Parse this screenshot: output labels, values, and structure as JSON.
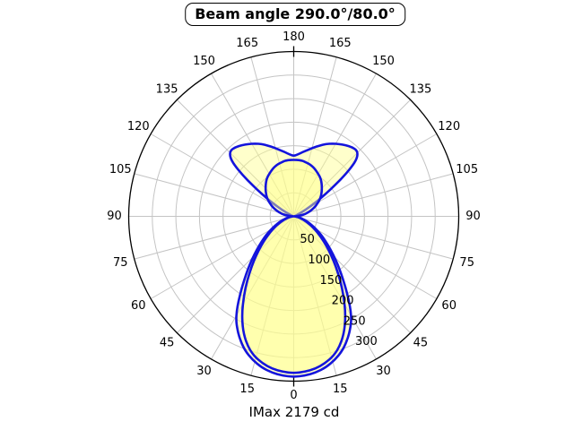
{
  "title": "Beam angle 290.0°/80.0°",
  "footer": "IMax 2179 cd",
  "chart_data": {
    "type": "polar",
    "subtype": "photometric-intensity-distribution",
    "units": "cd",
    "imax_cd": 2179,
    "beam_angles_deg": [
      290.0,
      80.0
    ],
    "angle_axis": {
      "zero_position": "bottom",
      "min_deg": 0,
      "max_deg": 180,
      "step_deg": 15,
      "labels_both_sides": true,
      "tick_labels": [
        0,
        15,
        30,
        45,
        60,
        75,
        90,
        105,
        120,
        135,
        150,
        165,
        180
      ]
    },
    "radial_axis": {
      "min": 0,
      "max": 350,
      "grid_step": 50,
      "ring_labels": [
        50,
        100,
        150,
        200,
        250,
        300
      ],
      "label_direction_deg": 30
    },
    "grid": {
      "spoke_step_deg": 15,
      "rings": 7
    },
    "colors": {
      "curve": "#1414dc",
      "fill": "rgba(255,255,140,0.45)",
      "grid": "#c4c4c4",
      "outer_ring": "#000000",
      "text": "#000000",
      "background": "#ffffff"
    },
    "series": [
      {
        "name": "plane-wide-290deg",
        "symmetry": "mirrored-left-right",
        "points_deg_cd": [
          [
            0,
            341
          ],
          [
            4,
            339
          ],
          [
            8,
            335
          ],
          [
            12,
            328
          ],
          [
            16,
            317
          ],
          [
            20,
            303
          ],
          [
            24,
            283
          ],
          [
            27,
            265
          ],
          [
            29,
            252
          ],
          [
            31,
            235
          ],
          [
            33,
            215
          ],
          [
            35,
            196
          ],
          [
            38,
            170
          ],
          [
            41,
            148
          ],
          [
            44,
            128
          ],
          [
            48,
            105
          ],
          [
            52,
            86
          ],
          [
            56,
            70
          ],
          [
            60,
            55
          ],
          [
            64,
            43
          ],
          [
            68,
            33
          ],
          [
            72,
            24
          ],
          [
            76,
            16
          ],
          [
            80,
            10
          ],
          [
            84,
            5
          ],
          [
            88,
            2
          ],
          [
            92,
            1
          ],
          [
            96,
            1
          ],
          [
            100,
            1.5
          ],
          [
            104,
            2
          ],
          [
            108,
            3
          ],
          [
            111,
            5
          ],
          [
            114,
            9
          ],
          [
            117,
            17
          ],
          [
            119,
            28
          ],
          [
            121,
            42
          ],
          [
            123,
            60
          ],
          [
            125,
            82
          ],
          [
            127,
            108
          ],
          [
            129,
            140
          ],
          [
            131,
            168
          ],
          [
            133,
            185
          ],
          [
            136,
            194
          ],
          [
            140,
            192
          ],
          [
            144,
            187
          ],
          [
            148,
            181
          ],
          [
            152,
            175
          ],
          [
            156,
            168
          ],
          [
            160,
            160
          ],
          [
            164,
            152
          ],
          [
            168,
            144
          ],
          [
            172,
            138
          ],
          [
            176,
            132
          ],
          [
            180,
            128
          ]
        ]
      },
      {
        "name": "plane-narrow-80deg",
        "symmetry": "mirrored-left-right",
        "points_deg_cd": [
          [
            0,
            333
          ],
          [
            4,
            331
          ],
          [
            8,
            327
          ],
          [
            12,
            319
          ],
          [
            16,
            308
          ],
          [
            20,
            290
          ],
          [
            24,
            265
          ],
          [
            28,
            234
          ],
          [
            32,
            200
          ],
          [
            36,
            168
          ],
          [
            40,
            139
          ],
          [
            44,
            114
          ],
          [
            48,
            93
          ],
          [
            52,
            75
          ],
          [
            56,
            60
          ],
          [
            60,
            47
          ],
          [
            64,
            36
          ],
          [
            68,
            27
          ],
          [
            72,
            19
          ],
          [
            76,
            13
          ],
          [
            80,
            8
          ],
          [
            84,
            4
          ],
          [
            88,
            1.5
          ],
          [
            90,
            0.5
          ],
          [
            94,
            8
          ],
          [
            98,
            17
          ],
          [
            102,
            25
          ],
          [
            106,
            33
          ],
          [
            110,
            41
          ],
          [
            114,
            49
          ],
          [
            118,
            56
          ],
          [
            122,
            64
          ],
          [
            126,
            71
          ],
          [
            130,
            77
          ],
          [
            134,
            83
          ],
          [
            138,
            89
          ],
          [
            142,
            95
          ],
          [
            146,
            100
          ],
          [
            150,
            104
          ],
          [
            154,
            108
          ],
          [
            158,
            112
          ],
          [
            162,
            115
          ],
          [
            166,
            117
          ],
          [
            170,
            119
          ],
          [
            174,
            120
          ],
          [
            180,
            120
          ]
        ]
      }
    ]
  }
}
